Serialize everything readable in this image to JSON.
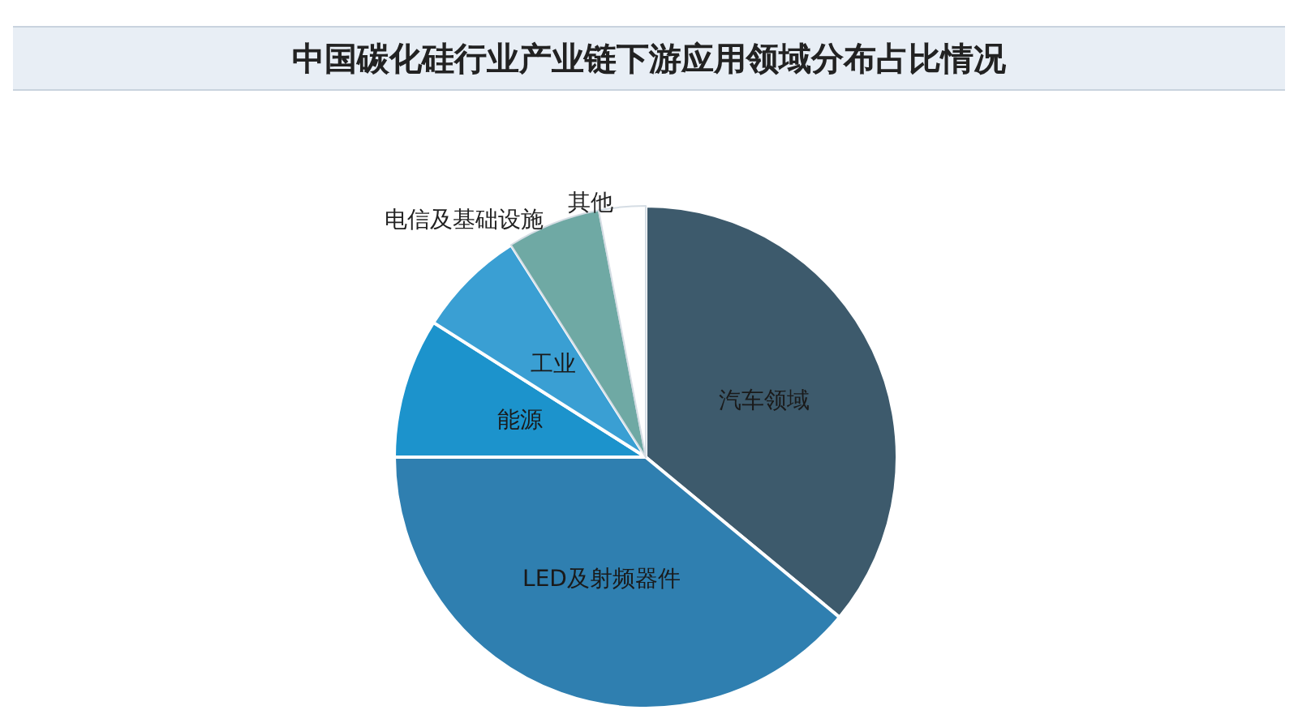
{
  "chart_data": {
    "type": "pie",
    "title": "中国碳化硅行业产业链下游应用领域分布占比情况",
    "categories": [
      "汽车领域",
      "LED及射频器件",
      "能源",
      "工业",
      "电信及基础设施",
      "其他"
    ],
    "values": [
      36,
      39,
      9,
      7,
      6,
      3
    ],
    "colors": [
      "#3d5a6c",
      "#2f7fb0",
      "#1c93cc",
      "#3a9fd3",
      "#6fa9a4",
      "#ffffff"
    ],
    "legend": false
  }
}
